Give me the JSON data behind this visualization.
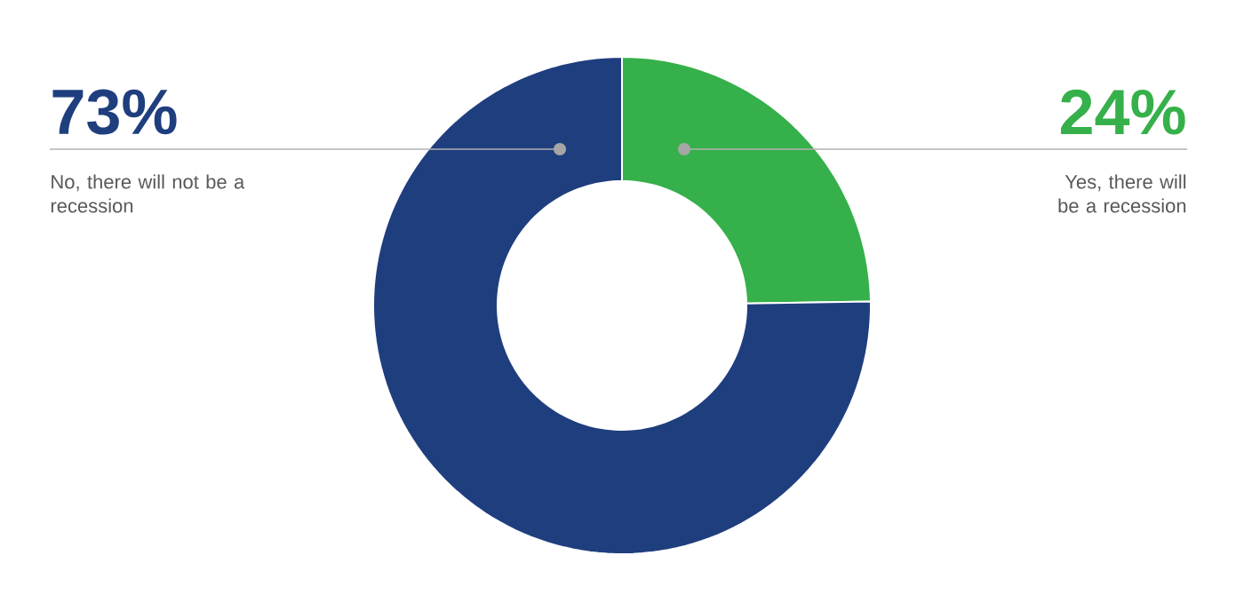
{
  "chart_data": {
    "type": "donut",
    "categories": [
      "Yes, there will be a recession",
      "No, there will not be a recession"
    ],
    "values": [
      24,
      73
    ],
    "colors": [
      "#36b04a",
      "#1f3e7e"
    ],
    "value_labels": [
      "24%",
      "73%"
    ]
  }
}
